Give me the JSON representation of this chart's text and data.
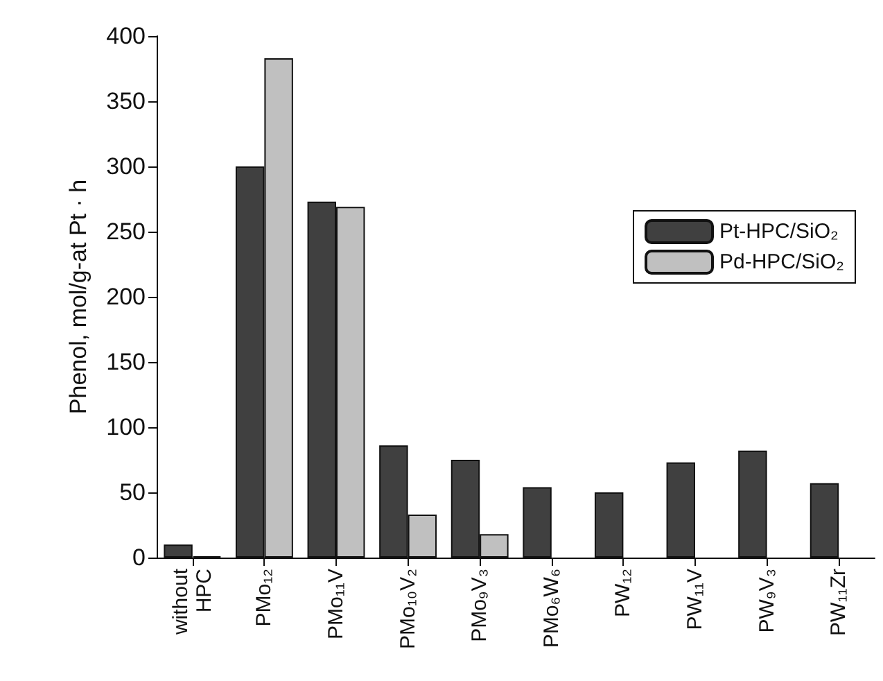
{
  "chart_data": {
    "type": "bar",
    "ylabel": "Phenol, mol/g-at Pt · h",
    "categories": [
      "without\nHPC",
      "PMo₁₂",
      "PMo₁₁V",
      "PMo₁₀V₂",
      "PMo₉V₃",
      "PMo₆W₆",
      "PW₁₂",
      "PW₁₁V",
      "PW₉V₃",
      "PW₁₁Zr"
    ],
    "series": [
      {
        "name": "Pt-HPC/SiO₂",
        "color": "#404040",
        "values": [
          10,
          300,
          273,
          86,
          75,
          54,
          50,
          73,
          82,
          57
        ]
      },
      {
        "name": "Pd-HPC/SiO₂",
        "color": "#c0c0c0",
        "values": [
          1,
          383,
          269,
          33,
          18,
          null,
          null,
          null,
          null,
          null
        ]
      }
    ],
    "ylim": [
      0,
      400
    ],
    "yticks": [
      0,
      50,
      100,
      150,
      200,
      250,
      300,
      350,
      400
    ],
    "grid": false,
    "legend": "right"
  }
}
